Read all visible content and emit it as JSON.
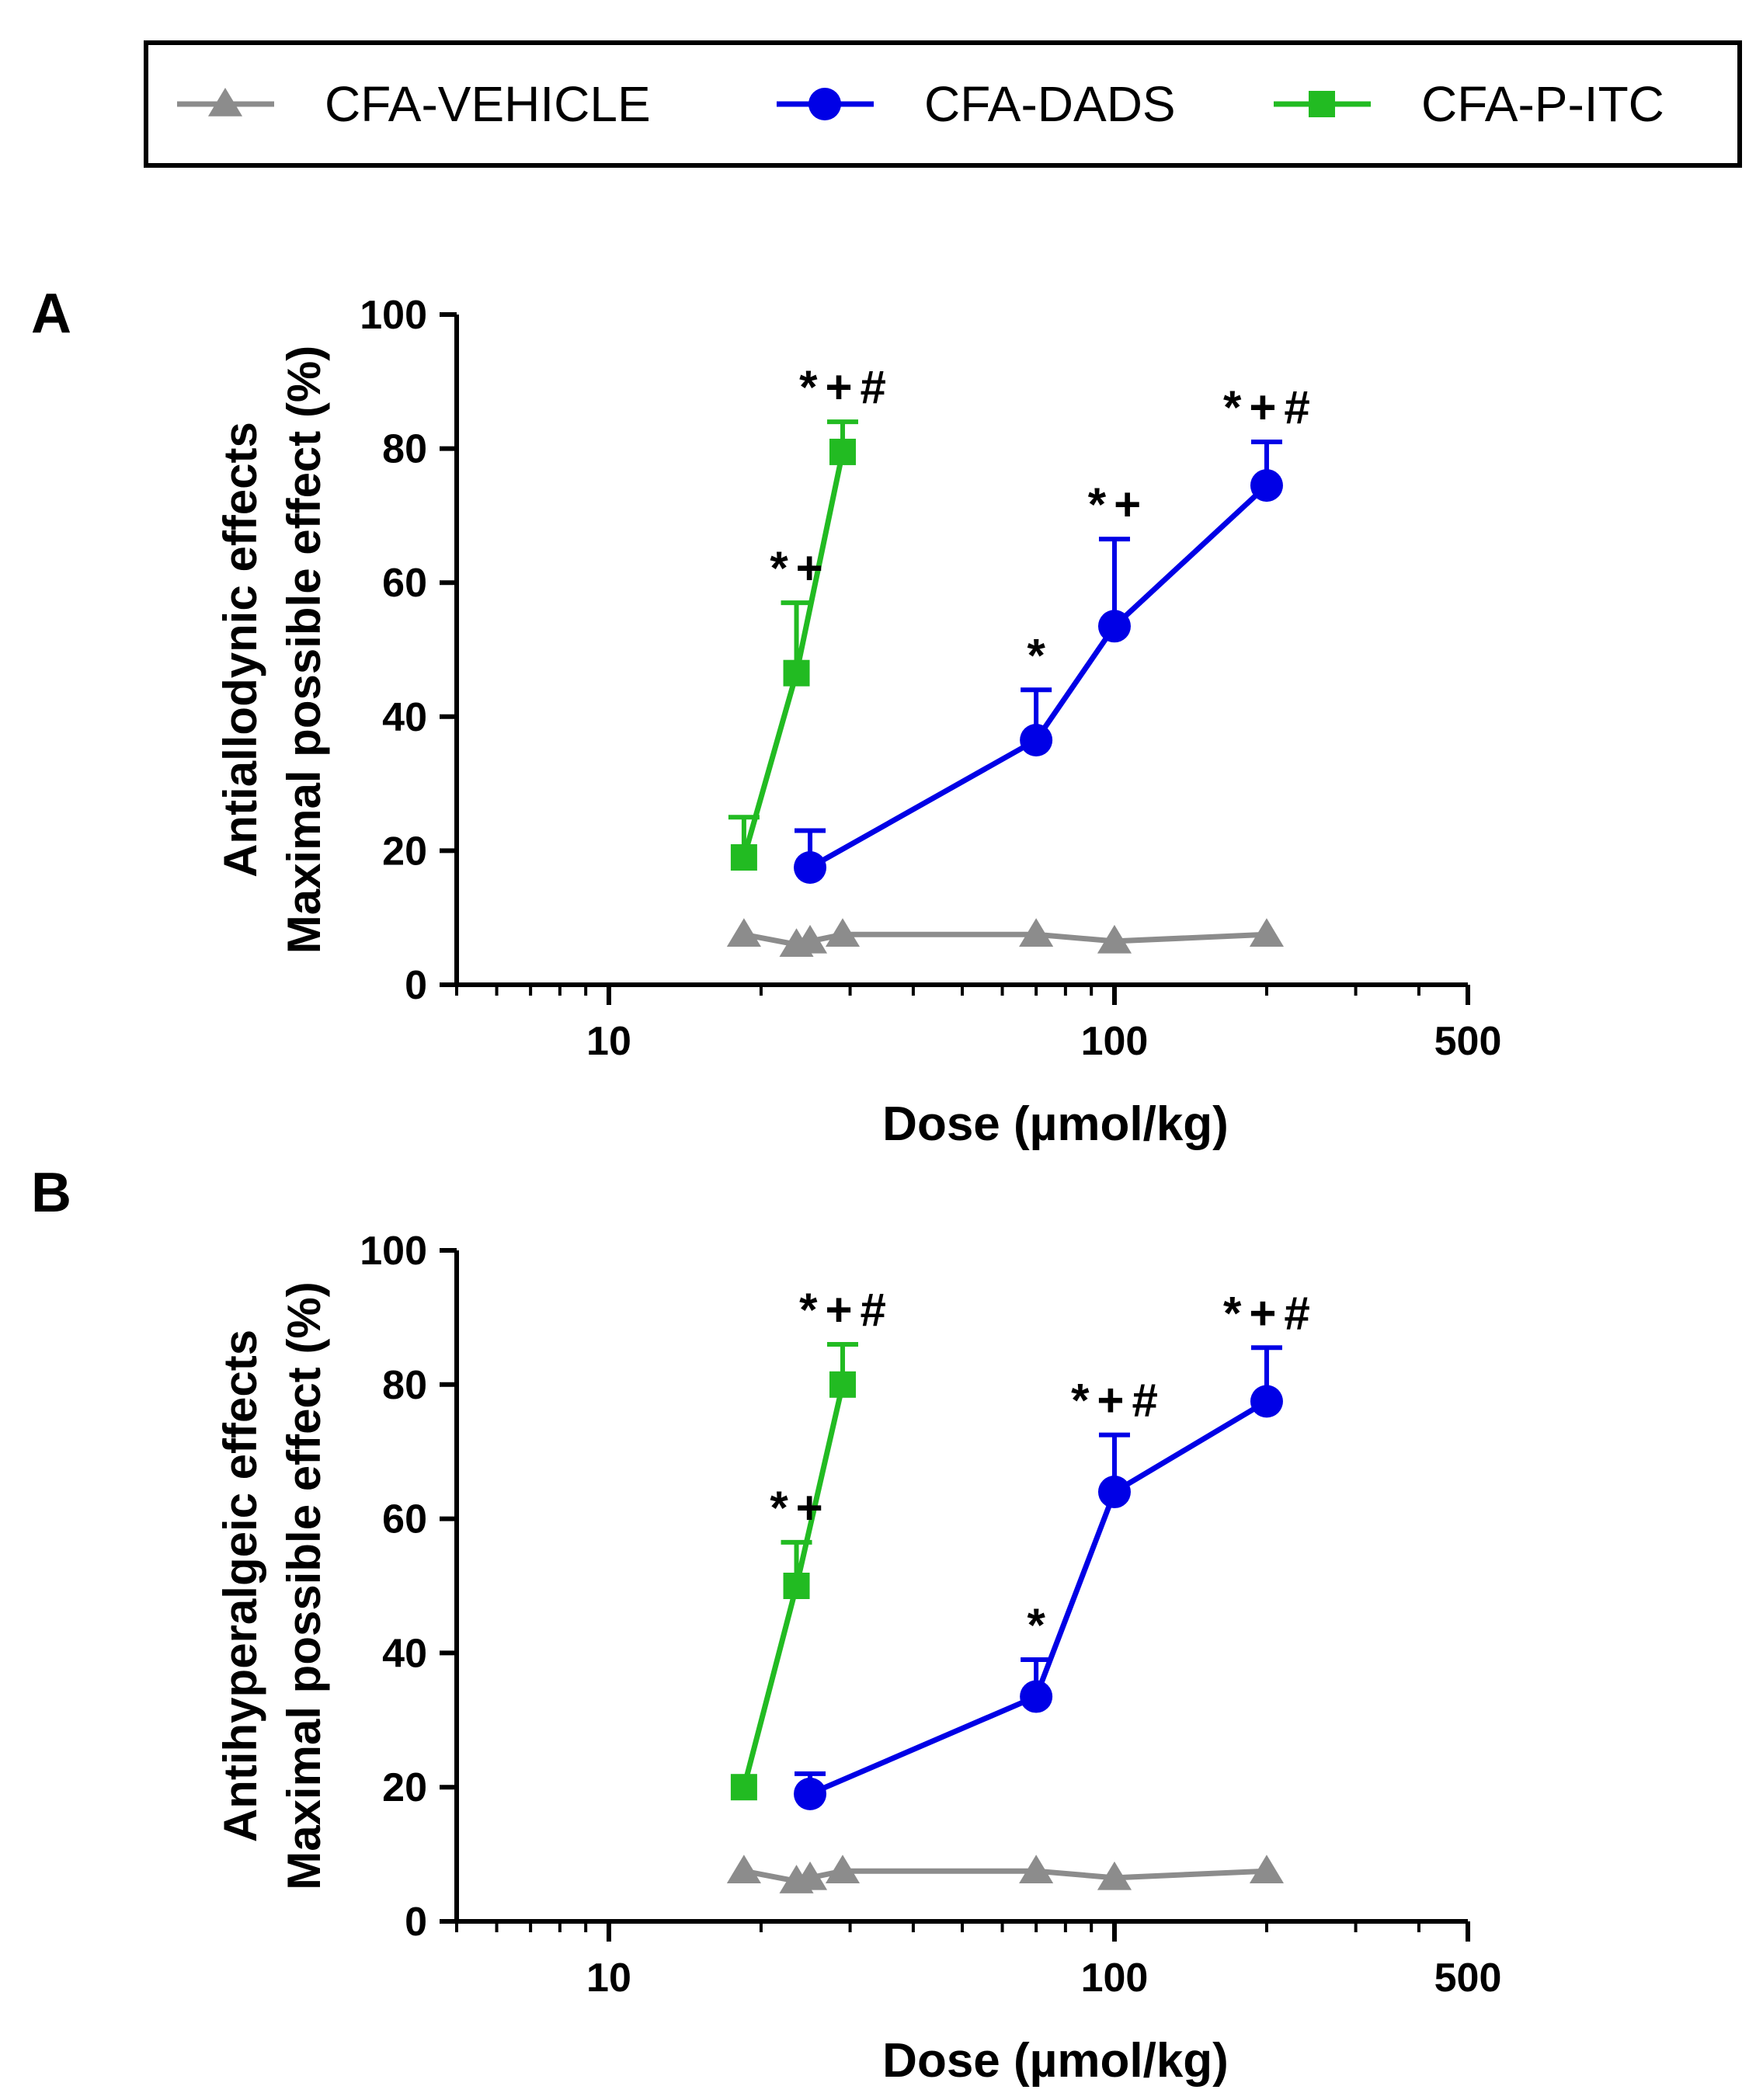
{
  "legend": {
    "entries": [
      {
        "label": "CFA-VEHICLE",
        "color": "#8c8c8c",
        "marker": "triangle"
      },
      {
        "label": "CFA-DADS",
        "color": "#0000e6",
        "marker": "circle"
      },
      {
        "label": "CFA-P-ITC",
        "color": "#22bb22",
        "marker": "square"
      }
    ]
  },
  "chart_data": [
    {
      "panel_label": "A",
      "type": "line",
      "xscale": "log",
      "xlim": [
        5,
        500
      ],
      "ylim": [
        0,
        100
      ],
      "xticks": [
        10,
        100,
        500
      ],
      "xtick_labels": [
        "10",
        "100",
        "500"
      ],
      "yticks": [
        0,
        20,
        40,
        60,
        80,
        100
      ],
      "ytick_labels": [
        "0",
        "20",
        "40",
        "60",
        "80",
        "100"
      ],
      "xlabel": "Dose (µmol/kg)",
      "ylabel_lines": [
        "Antiallodynic effects",
        "Maximal possible effect (%)"
      ],
      "series": [
        {
          "name": "CFA-VEHICLE",
          "x": [
            18.5,
            23.5,
            25,
            29,
            70,
            100,
            200
          ],
          "y": [
            7.5,
            6,
            6.5,
            7.5,
            7.5,
            6.5,
            7.5
          ],
          "err": [
            0,
            0,
            0,
            0,
            0,
            0,
            0
          ]
        },
        {
          "name": "CFA-DADS",
          "x": [
            25,
            70,
            100,
            200
          ],
          "y": [
            17.5,
            36.5,
            53.5,
            74.5
          ],
          "err": [
            5.5,
            7.5,
            13,
            6.5
          ],
          "annotations": [
            "",
            "*",
            "*+",
            "*+#"
          ]
        },
        {
          "name": "CFA-P-ITC",
          "x": [
            18.5,
            23.5,
            29
          ],
          "y": [
            19,
            46.5,
            79.5
          ],
          "err": [
            6,
            10.5,
            4.5
          ],
          "annotations": [
            "",
            "*+",
            "*+#"
          ]
        }
      ]
    },
    {
      "panel_label": "B",
      "type": "line",
      "xscale": "log",
      "xlim": [
        5,
        500
      ],
      "ylim": [
        0,
        100
      ],
      "xticks": [
        10,
        100,
        500
      ],
      "xtick_labels": [
        "10",
        "100",
        "500"
      ],
      "yticks": [
        0,
        20,
        40,
        60,
        80,
        100
      ],
      "ytick_labels": [
        "0",
        "20",
        "40",
        "60",
        "80",
        "100"
      ],
      "xlabel": "Dose (µmol/kg)",
      "ylabel_lines": [
        "Antihyperalgeic effects",
        "Maximal possible effect (%)"
      ],
      "series": [
        {
          "name": "CFA-VEHICLE",
          "x": [
            18.5,
            23.5,
            25,
            29,
            70,
            100,
            200
          ],
          "y": [
            7.5,
            6,
            6.5,
            7.5,
            7.5,
            6.5,
            7.5
          ],
          "err": [
            0,
            0,
            0,
            0,
            0,
            0,
            0
          ]
        },
        {
          "name": "CFA-DADS",
          "x": [
            25,
            70,
            100,
            200
          ],
          "y": [
            19,
            33.5,
            64,
            77.5
          ],
          "err": [
            3,
            5.5,
            8.5,
            8
          ],
          "annotations": [
            "",
            "*",
            "*+#",
            "*+#"
          ]
        },
        {
          "name": "CFA-P-ITC",
          "x": [
            18.5,
            23.5,
            29
          ],
          "y": [
            20,
            50,
            80
          ],
          "err": [
            0,
            6.5,
            6
          ],
          "annotations": [
            "",
            "*+",
            "*+#"
          ]
        }
      ]
    }
  ]
}
